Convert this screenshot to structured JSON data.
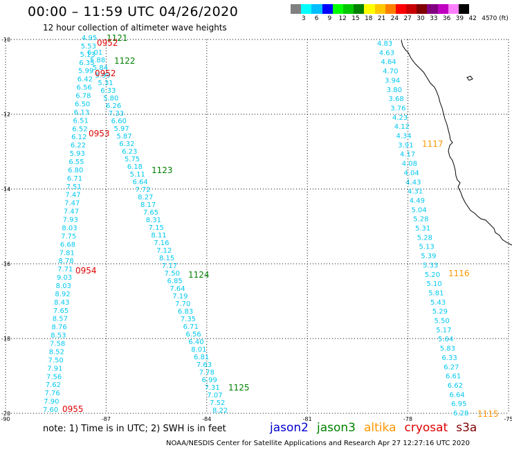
{
  "header": {
    "title": "00:00 – 11:59 UTC 04/26/2020",
    "subtitle": "12 hour collection of altimeter wave heights"
  },
  "colorbar": {
    "colors": [
      "#808080",
      "#00ffff",
      "#00bfff",
      "#0000ff",
      "#00ff00",
      "#00c800",
      "#008000",
      "#ffff00",
      "#ffc800",
      "#ff8000",
      "#ff0000",
      "#c80000",
      "#800000",
      "#800080",
      "#c000c0",
      "#ff80ff",
      "#000000"
    ],
    "tick_labels": [
      "3",
      "6",
      "9",
      "12",
      "15",
      "18",
      "21",
      "24",
      "27",
      "30",
      "33",
      "36",
      "39",
      "42",
      "45",
      "70 (ft)"
    ]
  },
  "map": {
    "lon_range": [
      -90,
      -75
    ],
    "lat_range": [
      -20,
      -10
    ],
    "lon_ticks": [
      "-90",
      "-87",
      "-84",
      "-81",
      "-78",
      "-75"
    ],
    "lat_ticks": [
      "-10",
      "-12",
      "-14",
      "-16",
      "-18",
      "-20"
    ],
    "coastline_color": "#000000",
    "grid": "dotted"
  },
  "tracks": {
    "cyan_color": "#00c8f0",
    "jason3_color": "#008000",
    "cryosat_color": "#e00000",
    "altika_color": "#ff9600",
    "track_a_values": [
      "4.95",
      "5.53",
      "5.13",
      "6.35",
      "5.99",
      "6.42",
      "6.56",
      "6.78",
      "6.50",
      "6.13",
      "6.51",
      "6.52",
      "6.12",
      "6.22",
      "5.93",
      "6.55",
      "6.80",
      "6.71",
      "7.51",
      "7.47",
      "7.47",
      "7.47",
      "7.93",
      "8.03",
      "7.75",
      "6.68",
      "7.81",
      "8.78",
      "7.71",
      "9.03",
      "8.03",
      "8.92",
      "8.43",
      "7.65",
      "8.57",
      "8.76",
      "8.53",
      "7.58",
      "8.52",
      "7.50",
      "7.91",
      "7.56",
      "7.62",
      "7.76",
      "7.90",
      "7.60"
    ],
    "track_b_values": [
      "6.01",
      "5.88",
      "5.84",
      "5.99",
      "5.31",
      "6.33",
      "5.80",
      "6.26",
      "7.33",
      "6.60",
      "5.97",
      "5.87",
      "6.32",
      "6.23",
      "5.75",
      "6.18",
      "5.11",
      "6.64",
      "7.72",
      "8.27",
      "8.17",
      "7.65",
      "8.31",
      "7.15",
      "8.11",
      "7.16",
      "7.12",
      "8.15",
      "7.17",
      "7.50",
      "6.85",
      "7.64",
      "7.19",
      "7.70",
      "6.83",
      "7.35",
      "6.71",
      "6.56",
      "6.40",
      "8.01",
      "6.81",
      "7.63",
      "7.78",
      "6.99",
      "7.31",
      "7.07",
      "7.52",
      "8.22"
    ],
    "track_c_values": [
      "4.83",
      "4.63",
      "4.64",
      "4.70",
      "3.94",
      "3.80",
      "3.68",
      "3.76",
      "4.23",
      "4.12",
      "4.34",
      "3.91",
      "4.17",
      "4.08",
      "4.04",
      "4.43",
      "4.31",
      "4.49",
      "5.04",
      "5.28",
      "5.31",
      "5.28",
      "5.13",
      "5.39",
      "5.33",
      "5.20",
      "5.10",
      "5.81",
      "5.43",
      "5.29",
      "5.50",
      "5.17",
      "5.64",
      "5.83",
      "6.33",
      "6.27",
      "6.61",
      "6.62",
      "6.64",
      "6.95",
      "6.28"
    ],
    "time_labels": [
      {
        "text": "1121",
        "sat": "jason3"
      },
      {
        "text": "0952",
        "sat": "cryosat"
      },
      {
        "text": "1122",
        "sat": "jason3"
      },
      {
        "text": "0952",
        "sat": "cryosat"
      },
      {
        "text": "0953",
        "sat": "cryosat"
      },
      {
        "text": "1123",
        "sat": "jason3"
      },
      {
        "text": "0954",
        "sat": "cryosat"
      },
      {
        "text": "1124",
        "sat": "jason3"
      },
      {
        "text": "1125",
        "sat": "jason3"
      },
      {
        "text": "0955",
        "sat": "cryosat"
      },
      {
        "text": "1117",
        "sat": "altika"
      },
      {
        "text": "1116",
        "sat": "altika"
      },
      {
        "text": "1115",
        "sat": "altika"
      }
    ]
  },
  "footer": {
    "note": "note: 1) Time is in UTC; 2) SWH is in feet",
    "legend": [
      {
        "label": "jason2",
        "color": "#0000d0"
      },
      {
        "label": "jason3",
        "color": "#008000"
      },
      {
        "label": "altika",
        "color": "#ff9600"
      },
      {
        "label": "cryosat",
        "color": "#e00000"
      },
      {
        "label": "s3a",
        "color": "#800000"
      }
    ],
    "credit": "NOAA/NESDIS Center for Satellite Applications and Research   Apr 27 12:27:16 UTC 2020"
  }
}
